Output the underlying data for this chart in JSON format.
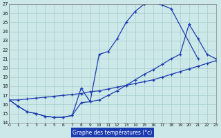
{
  "bg_color": "#cce8e8",
  "grid_color": "#a8cece",
  "line_color": "#1a3ab0",
  "xlabel": "Graphe des températures (°c)",
  "xlim": [
    0,
    23
  ],
  "ylim": [
    14,
    27
  ],
  "xticks": [
    0,
    1,
    2,
    3,
    4,
    5,
    6,
    7,
    8,
    9,
    10,
    11,
    12,
    13,
    14,
    15,
    16,
    17,
    18,
    19,
    20,
    21,
    22,
    23
  ],
  "yticks": [
    14,
    15,
    16,
    17,
    18,
    19,
    20,
    21,
    22,
    23,
    24,
    25,
    26,
    27
  ],
  "curve_top": {
    "x": [
      0,
      1,
      2,
      3,
      4,
      5,
      6,
      7,
      8,
      9,
      10,
      11,
      12,
      13,
      14,
      15,
      16,
      17,
      18,
      21
    ],
    "y": [
      16.5,
      15.8,
      15.2,
      15.0,
      14.7,
      14.6,
      14.6,
      14.8,
      17.8,
      16.3,
      21.5,
      21.8,
      23.2,
      25.0,
      26.2,
      27.0,
      27.2,
      26.9,
      26.5,
      21.0
    ]
  },
  "curve_mid": {
    "x": [
      0,
      1,
      2,
      3,
      4,
      5,
      6,
      7,
      8,
      9,
      10,
      11,
      12,
      13,
      14,
      15,
      16,
      17,
      18,
      19,
      20,
      21,
      22,
      23
    ],
    "y": [
      16.5,
      15.8,
      15.2,
      15.0,
      14.7,
      14.6,
      14.6,
      14.8,
      16.2,
      16.3,
      16.5,
      17.0,
      17.5,
      18.1,
      18.7,
      19.3,
      19.8,
      20.4,
      21.0,
      21.5,
      24.8,
      23.2,
      21.5,
      21.0
    ]
  },
  "curve_diag": {
    "x": [
      0,
      1,
      2,
      3,
      4,
      5,
      6,
      7,
      8,
      9,
      10,
      11,
      12,
      13,
      14,
      15,
      16,
      17,
      18,
      19,
      20,
      21,
      22,
      23
    ],
    "y": [
      16.5,
      16.5,
      16.6,
      16.7,
      16.8,
      16.9,
      17.0,
      17.1,
      17.2,
      17.4,
      17.5,
      17.7,
      17.9,
      18.1,
      18.3,
      18.5,
      18.7,
      19.0,
      19.3,
      19.6,
      19.9,
      20.2,
      20.5,
      20.8
    ]
  }
}
